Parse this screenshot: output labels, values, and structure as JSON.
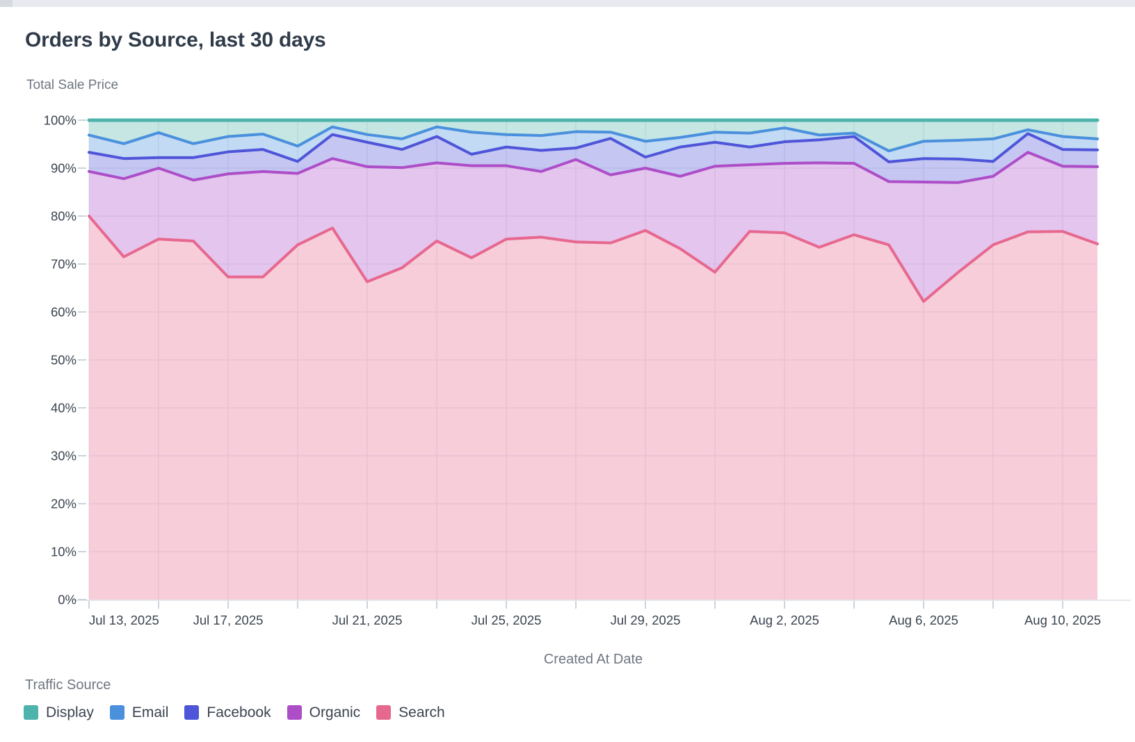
{
  "title": "Orders by Source, last 30 days",
  "chart_data": {
    "type": "area",
    "stacked": true,
    "unit": "percent_share",
    "title": "Orders by Source, last 30 days",
    "xlabel": "Created At Date",
    "ylabel": "Total Sale Price",
    "legend_title": "Traffic Source",
    "legend_position": "bottom",
    "grid": true,
    "ylim": [
      0,
      100
    ],
    "y_tick_labels": [
      "0%",
      "10%",
      "20%",
      "30%",
      "40%",
      "50%",
      "60%",
      "70%",
      "80%",
      "90%",
      "100%"
    ],
    "x_dates": [
      "Jul 13, 2025",
      "Jul 14, 2025",
      "Jul 15, 2025",
      "Jul 16, 2025",
      "Jul 17, 2025",
      "Jul 18, 2025",
      "Jul 19, 2025",
      "Jul 20, 2025",
      "Jul 21, 2025",
      "Jul 22, 2025",
      "Jul 23, 2025",
      "Jul 24, 2025",
      "Jul 25, 2025",
      "Jul 26, 2025",
      "Jul 27, 2025",
      "Jul 28, 2025",
      "Jul 29, 2025",
      "Jul 30, 2025",
      "Jul 31, 2025",
      "Aug 1, 2025",
      "Aug 2, 2025",
      "Aug 3, 2025",
      "Aug 4, 2025",
      "Aug 5, 2025",
      "Aug 6, 2025",
      "Aug 7, 2025",
      "Aug 8, 2025",
      "Aug 9, 2025",
      "Aug 10, 2025",
      "Aug 11, 2025"
    ],
    "x_tick_labels": [
      {
        "i": 0,
        "label": "Jul 13, 2025"
      },
      {
        "i": 4,
        "label": "Jul 17, 2025"
      },
      {
        "i": 8,
        "label": "Jul 21, 2025"
      },
      {
        "i": 12,
        "label": "Jul 25, 2025"
      },
      {
        "i": 16,
        "label": "Jul 29, 2025"
      },
      {
        "i": 20,
        "label": "Aug 2, 2025"
      },
      {
        "i": 24,
        "label": "Aug 6, 2025"
      },
      {
        "i": 28,
        "label": "Aug 10, 2025"
      }
    ],
    "minor_tick_every_days": 2,
    "stack_order": "series listed bottom to top",
    "series": [
      {
        "name": "Search",
        "color": "#e7688f",
        "values": [
          80.0,
          71.5,
          75.2,
          74.8,
          67.3,
          67.3,
          74.0,
          77.5,
          66.3,
          69.2,
          74.8,
          71.3,
          75.2,
          75.6,
          74.6,
          74.4,
          77.0,
          73.2,
          68.3,
          76.8,
          76.5,
          73.5,
          76.1,
          74.0,
          62.2,
          68.3,
          74.0,
          76.7,
          76.8,
          74.2
        ]
      },
      {
        "name": "Organic",
        "color": "#ad4ec8",
        "values": [
          9.3,
          16.3,
          14.8,
          12.7,
          21.5,
          22.0,
          14.9,
          14.5,
          24.0,
          20.9,
          16.3,
          19.2,
          15.3,
          13.7,
          17.2,
          14.2,
          13.0,
          15.1,
          22.1,
          13.9,
          14.5,
          17.6,
          14.9,
          13.2,
          24.9,
          18.7,
          14.3,
          16.6,
          13.6,
          16.1
        ]
      },
      {
        "name": "Facebook",
        "color": "#4f55d8",
        "values": [
          4.0,
          4.2,
          2.2,
          4.7,
          4.6,
          4.6,
          2.5,
          5.0,
          5.1,
          3.8,
          5.5,
          2.4,
          3.9,
          4.4,
          2.4,
          7.6,
          2.3,
          6.1,
          5.0,
          3.7,
          4.5,
          4.8,
          5.6,
          4.1,
          4.9,
          4.9,
          3.1,
          3.9,
          3.5,
          3.5
        ]
      },
      {
        "name": "Email",
        "color": "#4a90dd",
        "values": [
          3.6,
          3.1,
          5.2,
          2.9,
          3.2,
          3.2,
          3.2,
          1.6,
          1.6,
          2.2,
          2.0,
          4.6,
          2.6,
          3.1,
          3.4,
          1.3,
          3.3,
          2.0,
          2.1,
          2.9,
          2.9,
          1.0,
          0.7,
          2.3,
          3.6,
          3.9,
          4.7,
          0.8,
          2.7,
          2.3
        ]
      },
      {
        "name": "Display",
        "color": "#4eb3ab",
        "values": [
          3.1,
          4.9,
          2.6,
          4.9,
          3.4,
          2.9,
          5.4,
          1.4,
          3.0,
          3.9,
          1.4,
          2.5,
          3.0,
          3.2,
          2.4,
          2.5,
          4.4,
          3.6,
          2.5,
          2.7,
          1.6,
          3.1,
          2.7,
          6.4,
          4.4,
          4.2,
          3.9,
          2.0,
          3.4,
          3.9
        ]
      }
    ],
    "legend_items": [
      {
        "label": "Display",
        "color": "#4eb3ab"
      },
      {
        "label": "Email",
        "color": "#4a90dd"
      },
      {
        "label": "Facebook",
        "color": "#4f55d8"
      },
      {
        "label": "Organic",
        "color": "#ad4ec8"
      },
      {
        "label": "Search",
        "color": "#e7688f"
      }
    ]
  }
}
